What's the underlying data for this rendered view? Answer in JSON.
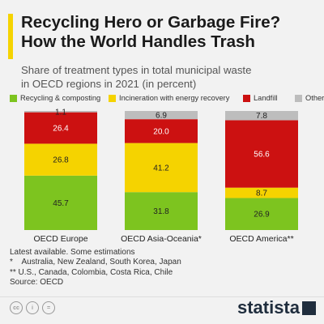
{
  "title_line1": "Recycling Hero or Garbage Fire?",
  "title_line2": "How the World Handles Trash",
  "subtitle_line1": "Share of treatment types in total municipal waste",
  "subtitle_line2": "in OECD regions in 2021 (in percent)",
  "colors": {
    "accent": "#f5d300",
    "recycling": "#7dc41f",
    "incineration": "#f5d300",
    "landfill": "#cc1111",
    "other": "#bdbdbd",
    "brand": "#1f2d3d"
  },
  "chart_data": {
    "type": "bar",
    "stacked": true,
    "orientation": "vertical",
    "categories": [
      "OECD Europe",
      "OECD Asia-Oceania*",
      "OECD America**"
    ],
    "series": [
      {
        "name": "Recycling & composting",
        "values": [
          45.7,
          31.8,
          26.9
        ]
      },
      {
        "name": "Incineration with energy recovery",
        "values": [
          26.8,
          41.2,
          8.7
        ]
      },
      {
        "name": "Landfill",
        "values": [
          26.4,
          20.0,
          56.6
        ]
      },
      {
        "name": "Other",
        "values": [
          1.1,
          6.9,
          7.8
        ]
      }
    ],
    "data_labels": [
      [
        "45.7",
        "31.8",
        "26.9"
      ],
      [
        "26.8",
        "41.2",
        "8.7"
      ],
      [
        "26.4",
        "20.0",
        "56.6"
      ],
      [
        "1.1",
        "6.9",
        "7.8"
      ]
    ],
    "ylim": [
      0,
      100
    ],
    "legend_position": "top",
    "grid": false
  },
  "notes": [
    "Latest available. Some estimations",
    "*    Australia, New Zealand, South Korea, Japan",
    "** U.S., Canada, Colombia, Costa Rica, Chile",
    "Source: OECD"
  ],
  "footer": {
    "cc_icons": [
      "cc",
      "i",
      "="
    ],
    "brand": "statista"
  }
}
